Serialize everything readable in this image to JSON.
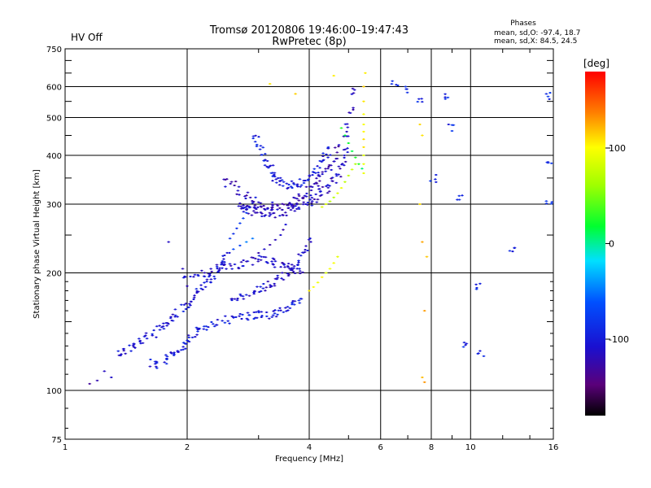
{
  "header": {
    "status": "HV Off",
    "status_color": "#dd0000",
    "title_line1": "Tromsø 20120806 19:46:00–19:47:43",
    "title_line2": "RwPretec (8p)",
    "stats_title": "Phases",
    "stats_line1": "mean, sd,O: -97.4, 18.7",
    "stats_line2": "mean, sd,X:  84.5, 24.5"
  },
  "chart_data": {
    "type": "scatter",
    "title": "Tromsø 20120806 19:46:00–19:47:43",
    "subtitle": "RwPretec (8p)",
    "xlabel": "Frequency [MHz]",
    "ylabel": "Stationary phase Virtual Height [km]",
    "x_scale": "log",
    "y_scale": "log",
    "xlim": [
      1,
      16
    ],
    "ylim": [
      75,
      750
    ],
    "x_ticks": [
      1,
      2,
      4,
      6,
      8,
      10,
      16
    ],
    "x_tick_labels": [
      "1",
      "2",
      "4",
      "6",
      "8",
      "10",
      "16"
    ],
    "y_ticks": [
      75,
      100,
      200,
      300,
      400,
      500,
      600,
      750
    ],
    "y_tick_labels": [
      "75",
      "100",
      "200",
      "300",
      "400",
      "500",
      "600",
      "750"
    ],
    "grid": true,
    "colorbar": {
      "label": "[deg]",
      "range": [
        -180,
        180
      ],
      "ticks": [
        100,
        0,
        -100
      ],
      "tick_labels": [
        "100",
        "0",
        "-100"
      ],
      "colormap": "rainbow"
    },
    "traces": [
      {
        "name": "",
        "phase": -100,
        "points": [
          [
            1.65,
            118
          ],
          [
            1.7,
            116
          ],
          [
            1.75,
            118
          ],
          [
            1.8,
            122
          ],
          [
            1.85,
            125
          ],
          [
            1.9,
            128
          ],
          [
            1.95,
            130
          ],
          [
            2.0,
            133
          ],
          [
            2.05,
            137
          ],
          [
            2.1,
            140
          ],
          [
            2.15,
            142
          ],
          [
            2.2,
            145
          ],
          [
            2.3,
            148
          ],
          [
            2.4,
            150
          ],
          [
            2.5,
            152
          ],
          [
            2.6,
            153
          ],
          [
            2.7,
            154
          ],
          [
            2.8,
            155
          ],
          [
            2.9,
            156
          ],
          [
            3.0,
            157
          ],
          [
            3.1,
            156
          ],
          [
            3.2,
            155
          ],
          [
            3.3,
            158
          ],
          [
            3.4,
            160
          ],
          [
            3.5,
            162
          ],
          [
            3.6,
            164
          ],
          [
            3.7,
            166
          ],
          [
            3.8,
            168
          ]
        ]
      },
      {
        "name": "",
        "phase": -105,
        "points": [
          [
            1.35,
            125
          ],
          [
            1.4,
            127
          ],
          [
            1.45,
            129
          ],
          [
            1.5,
            131
          ],
          [
            1.55,
            134
          ],
          [
            1.6,
            137
          ],
          [
            1.65,
            140
          ],
          [
            1.7,
            143
          ],
          [
            1.75,
            147
          ],
          [
            1.8,
            150
          ],
          [
            1.85,
            154
          ],
          [
            1.9,
            158
          ],
          [
            1.95,
            162
          ],
          [
            2.0,
            166
          ],
          [
            2.05,
            170
          ],
          [
            2.1,
            175
          ],
          [
            2.15,
            180
          ],
          [
            2.2,
            186
          ],
          [
            2.25,
            192
          ],
          [
            2.3,
            198
          ],
          [
            2.35,
            204
          ],
          [
            2.4,
            210
          ],
          [
            2.45,
            215
          ],
          [
            2.5,
            220
          ]
        ]
      },
      {
        "name": "",
        "phase": -110,
        "points": [
          [
            2.0,
            195
          ],
          [
            2.1,
            198
          ],
          [
            2.2,
            200
          ],
          [
            2.3,
            202
          ],
          [
            2.4,
            205
          ],
          [
            2.5,
            207
          ],
          [
            2.6,
            208
          ],
          [
            2.7,
            210
          ],
          [
            2.8,
            212
          ],
          [
            2.9,
            215
          ],
          [
            3.0,
            218
          ],
          [
            3.1,
            216
          ],
          [
            3.2,
            214
          ],
          [
            3.3,
            212
          ],
          [
            3.4,
            210
          ],
          [
            3.5,
            208
          ],
          [
            3.6,
            206
          ],
          [
            3.7,
            204
          ],
          [
            3.8,
            202
          ]
        ]
      },
      {
        "name": "",
        "phase": -115,
        "points": [
          [
            2.7,
            300
          ],
          [
            2.75,
            295
          ],
          [
            2.8,
            292
          ],
          [
            2.85,
            290
          ],
          [
            2.9,
            288
          ],
          [
            2.95,
            287
          ],
          [
            3.0,
            286
          ],
          [
            3.1,
            285
          ],
          [
            3.2,
            284
          ],
          [
            3.3,
            284
          ],
          [
            3.4,
            285
          ],
          [
            3.5,
            287
          ],
          [
            3.6,
            290
          ],
          [
            3.7,
            293
          ],
          [
            3.8,
            296
          ],
          [
            3.9,
            300
          ],
          [
            4.0,
            305
          ],
          [
            4.1,
            310
          ],
          [
            4.2,
            316
          ],
          [
            4.3,
            322
          ],
          [
            4.4,
            328
          ],
          [
            4.5,
            336
          ],
          [
            4.6,
            344
          ],
          [
            4.7,
            355
          ],
          [
            4.8,
            372
          ],
          [
            4.85,
            390
          ],
          [
            4.9,
            410
          ],
          [
            4.95,
            440
          ],
          [
            5.0,
            470
          ],
          [
            5.05,
            520
          ],
          [
            5.1,
            580
          ]
        ]
      },
      {
        "name": "",
        "phase": -120,
        "points": [
          [
            2.5,
            340
          ],
          [
            2.6,
            335
          ],
          [
            2.7,
            325
          ],
          [
            2.8,
            315
          ],
          [
            2.9,
            305
          ],
          [
            3.0,
            300
          ],
          [
            3.1,
            298
          ],
          [
            3.2,
            297
          ],
          [
            3.3,
            297
          ],
          [
            3.4,
            298
          ],
          [
            3.5,
            300
          ],
          [
            3.6,
            303
          ],
          [
            3.7,
            307
          ],
          [
            3.8,
            312
          ],
          [
            3.9,
            318
          ],
          [
            4.0,
            325
          ],
          [
            4.1,
            333
          ],
          [
            4.2,
            342
          ],
          [
            4.3,
            352
          ],
          [
            4.4,
            362
          ],
          [
            4.5,
            375
          ],
          [
            4.6,
            392
          ],
          [
            4.7,
            415
          ]
        ]
      },
      {
        "name": "",
        "phase": -100,
        "points": [
          [
            2.95,
            440
          ],
          [
            3.0,
            425
          ],
          [
            3.05,
            410
          ],
          [
            3.1,
            395
          ],
          [
            3.15,
            380
          ],
          [
            3.2,
            370
          ],
          [
            3.25,
            360
          ],
          [
            3.3,
            350
          ],
          [
            3.35,
            345
          ],
          [
            3.4,
            340
          ],
          [
            3.5,
            337
          ],
          [
            3.6,
            336
          ],
          [
            3.7,
            337
          ],
          [
            3.8,
            340
          ],
          [
            3.9,
            345
          ],
          [
            4.0,
            352
          ],
          [
            4.1,
            360
          ],
          [
            4.2,
            370
          ],
          [
            4.3,
            382
          ],
          [
            4.4,
            395
          ],
          [
            4.5,
            410
          ]
        ]
      },
      {
        "name": "",
        "phase": -110,
        "points": [
          [
            2.6,
            170
          ],
          [
            2.7,
            172
          ],
          [
            2.8,
            174
          ],
          [
            2.9,
            177
          ],
          [
            3.0,
            180
          ],
          [
            3.1,
            183
          ],
          [
            3.2,
            186
          ],
          [
            3.3,
            190
          ],
          [
            3.4,
            195
          ],
          [
            3.5,
            200
          ],
          [
            3.6,
            206
          ],
          [
            3.7,
            213
          ],
          [
            3.8,
            220
          ],
          [
            3.9,
            230
          ],
          [
            4.0,
            240
          ]
        ]
      },
      {
        "name": "",
        "phase": -115,
        "points": [
          [
            3.0,
            225
          ],
          [
            3.1,
            230
          ],
          [
            3.2,
            236
          ],
          [
            3.3,
            243
          ],
          [
            3.4,
            250
          ],
          [
            3.45,
            258
          ],
          [
            3.5,
            266
          ]
        ]
      },
      {
        "name": "",
        "phase": -85,
        "points": [
          [
            2.55,
            245
          ],
          [
            2.6,
            252
          ],
          [
            2.65,
            260
          ],
          [
            2.7,
            268
          ],
          [
            2.75,
            276
          ],
          [
            2.8,
            285
          ],
          [
            2.85,
            294
          ],
          [
            2.9,
            302
          ],
          [
            2.95,
            312
          ]
        ]
      },
      {
        "name": "",
        "phase": -60,
        "points": [
          [
            2.6,
            230
          ],
          [
            2.7,
            235
          ],
          [
            2.8,
            240
          ],
          [
            2.9,
            245
          ]
        ]
      },
      {
        "name": "",
        "phase": 95,
        "points": [
          [
            4.0,
            180
          ],
          [
            4.1,
            184
          ],
          [
            4.2,
            189
          ],
          [
            4.3,
            195
          ],
          [
            4.4,
            200
          ],
          [
            4.5,
            205
          ],
          [
            4.6,
            212
          ],
          [
            4.7,
            220
          ]
        ]
      },
      {
        "name": "",
        "phase": 80,
        "points": [
          [
            4.3,
            295
          ],
          [
            4.4,
            300
          ],
          [
            4.5,
            305
          ],
          [
            4.6,
            312
          ],
          [
            4.7,
            320
          ],
          [
            4.8,
            330
          ],
          [
            4.9,
            342
          ],
          [
            5.0,
            355
          ],
          [
            5.1,
            368
          ],
          [
            5.2,
            380
          ]
        ]
      },
      {
        "name": "",
        "phase": 100,
        "points": [
          [
            5.45,
            360
          ],
          [
            5.45,
            380
          ],
          [
            5.45,
            400
          ],
          [
            5.45,
            420
          ],
          [
            5.45,
            440
          ],
          [
            5.45,
            460
          ],
          [
            5.45,
            480
          ],
          [
            5.45,
            510
          ],
          [
            5.45,
            550
          ],
          [
            5.45,
            600
          ]
        ]
      },
      {
        "name": "",
        "phase": 20,
        "points": [
          [
            4.8,
            470
          ],
          [
            4.9,
            450
          ],
          [
            5.0,
            430
          ],
          [
            5.1,
            410
          ],
          [
            5.2,
            395
          ],
          [
            5.3,
            380
          ],
          [
            5.4,
            370
          ]
        ]
      },
      {
        "name": "",
        "phase": 120,
        "points": [
          [
            3.2,
            610
          ],
          [
            3.7,
            575
          ],
          [
            4.6,
            640
          ],
          [
            5.5,
            650
          ],
          [
            7.5,
            480
          ],
          [
            7.6,
            450
          ],
          [
            7.5,
            300
          ],
          [
            7.6,
            240
          ],
          [
            7.8,
            220
          ],
          [
            7.7,
            160
          ],
          [
            7.6,
            108
          ],
          [
            7.7,
            105
          ]
        ]
      },
      {
        "name": "",
        "phase": -90,
        "points": [
          [
            6.5,
            605
          ],
          [
            7.0,
            590
          ],
          [
            7.5,
            560
          ],
          [
            8.1,
            350
          ],
          [
            8.8,
            560
          ],
          [
            9.0,
            470
          ],
          [
            9.4,
            310
          ],
          [
            9.7,
            130
          ],
          [
            10.4,
            185
          ],
          [
            10.6,
            125
          ],
          [
            12.6,
            230
          ],
          [
            15.6,
            570
          ],
          [
            15.7,
            380
          ],
          [
            15.6,
            300
          ]
        ]
      },
      {
        "name": "",
        "phase": -120,
        "points": [
          [
            1.15,
            104
          ],
          [
            1.2,
            106
          ],
          [
            1.3,
            108
          ],
          [
            1.8,
            240
          ],
          [
            1.95,
            205
          ],
          [
            2.0,
            185
          ],
          [
            1.25,
            112
          ]
        ]
      }
    ]
  }
}
